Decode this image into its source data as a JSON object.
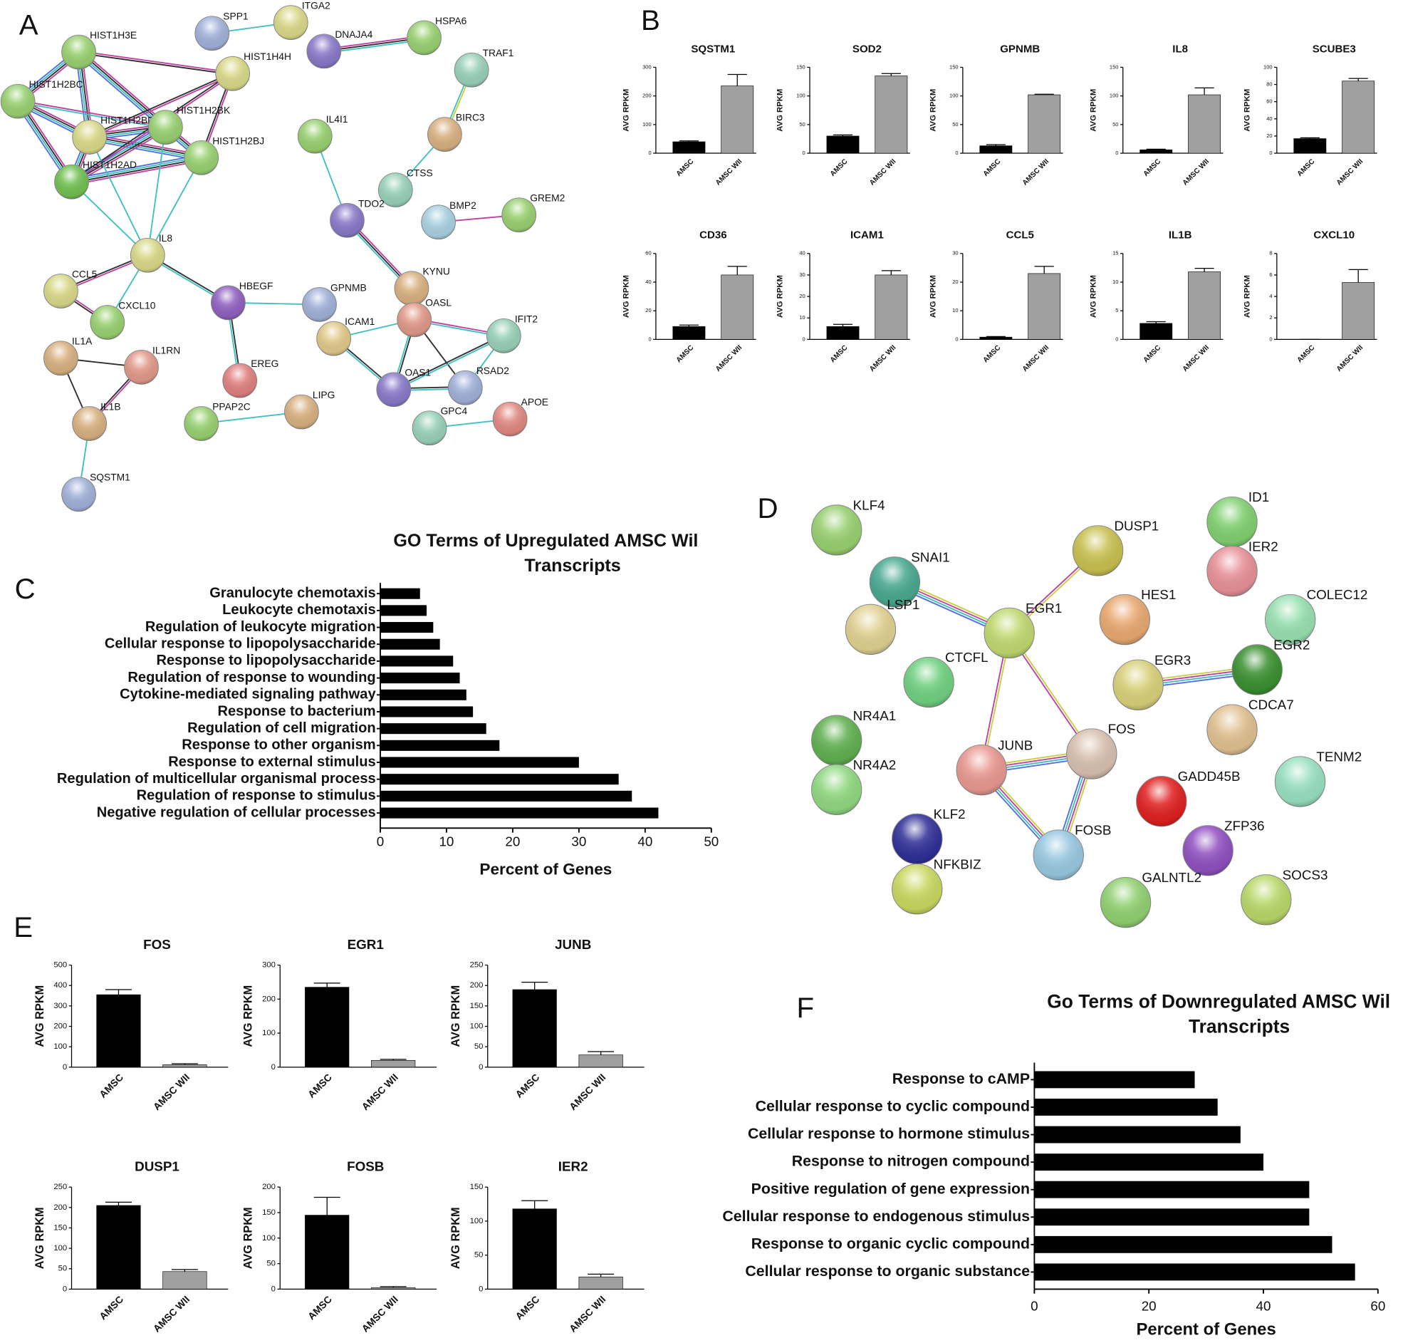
{
  "panel_labels": [
    "A",
    "B",
    "C",
    "D",
    "E",
    "F"
  ],
  "network_a": {
    "nodes": [
      "SPP1",
      "ITGA2",
      "DNAJA4",
      "HSPA6",
      "HIST1H3E",
      "HIST1H4H",
      "TRAF1",
      "HIST1H2BC",
      "HIST1H2BD",
      "HIST1H2BK",
      "HIST1H2BJ",
      "HIST1H2AD",
      "BIRC3",
      "IL4I1",
      "CTSS",
      "TDO2",
      "BMP2",
      "GREM2",
      "IL8",
      "CCL5",
      "HBEGF",
      "GPNMB",
      "KYNU",
      "OASL",
      "CXCL10",
      "ICAM1",
      "IFIT2",
      "IL1A",
      "IL1RN",
      "EREG",
      "OAS1",
      "RSAD2",
      "IL1B",
      "PPAP2C",
      "LIPG",
      "GPC4",
      "APOE",
      "SQSTM1"
    ]
  },
  "network_d": {
    "nodes": [
      "KLF4",
      "ID1",
      "DUSP1",
      "SNAI1",
      "IER2",
      "LSP1",
      "HES1",
      "COLEC12",
      "EGR1",
      "EGR2",
      "CTCFL",
      "EGR3",
      "CDCA7",
      "NR4A1",
      "FOS",
      "JUNB",
      "TENM2",
      "NR4A2",
      "GADD45B",
      "KLF2",
      "FOSB",
      "ZFP36",
      "NFKBIZ",
      "GALNTL2",
      "SOCS3"
    ]
  },
  "chart_data": [
    {
      "type": "bar",
      "title": "SQSTM1",
      "ylabel": "AVG RPKM",
      "categories": [
        "AMSC",
        "AMSC WII"
      ],
      "values": [
        40,
        235
      ],
      "errors": [
        3,
        40
      ],
      "colors": [
        "#000000",
        "#a0a0a0"
      ],
      "ylim": [
        0,
        300
      ],
      "yticks": [
        0,
        100,
        200,
        300
      ]
    },
    {
      "type": "bar",
      "title": "SOD2",
      "ylabel": "AVG RPKM",
      "categories": [
        "AMSC",
        "AMSC WII"
      ],
      "values": [
        30,
        135
      ],
      "errors": [
        2,
        4
      ],
      "colors": [
        "#000000",
        "#a0a0a0"
      ],
      "ylim": [
        0,
        150
      ],
      "yticks": [
        0,
        50,
        100,
        150
      ]
    },
    {
      "type": "bar",
      "title": "GPNMB",
      "ylabel": "AVG RPKM",
      "categories": [
        "AMSC",
        "AMSC WII"
      ],
      "values": [
        13,
        102
      ],
      "errors": [
        2,
        1
      ],
      "colors": [
        "#000000",
        "#a0a0a0"
      ],
      "ylim": [
        0,
        150
      ],
      "yticks": [
        0,
        50,
        100,
        150
      ]
    },
    {
      "type": "bar",
      "title": "IL8",
      "ylabel": "AVG RPKM",
      "categories": [
        "AMSC",
        "AMSC WII"
      ],
      "values": [
        6,
        102
      ],
      "errors": [
        1,
        12
      ],
      "colors": [
        "#000000",
        "#a0a0a0"
      ],
      "ylim": [
        0,
        150
      ],
      "yticks": [
        0,
        50,
        100,
        150
      ]
    },
    {
      "type": "bar",
      "title": "SCUBE3",
      "ylabel": "AVG RPKM",
      "categories": [
        "AMSC",
        "AMSC WII"
      ],
      "values": [
        17,
        84
      ],
      "errors": [
        1,
        3
      ],
      "colors": [
        "#000000",
        "#a0a0a0"
      ],
      "ylim": [
        0,
        100
      ],
      "yticks": [
        0,
        20,
        40,
        60,
        80,
        100
      ]
    },
    {
      "type": "bar",
      "title": "CD36",
      "ylabel": "AVG RPKM",
      "categories": [
        "AMSC",
        "AMSC WII"
      ],
      "values": [
        9,
        45
      ],
      "errors": [
        1,
        6
      ],
      "colors": [
        "#000000",
        "#a0a0a0"
      ],
      "ylim": [
        0,
        60
      ],
      "yticks": [
        0,
        20,
        40,
        60
      ]
    },
    {
      "type": "bar",
      "title": "ICAM1",
      "ylabel": "AVG RPKM",
      "categories": [
        "AMSC",
        "AMSC WII"
      ],
      "values": [
        6,
        30
      ],
      "errors": [
        1,
        2
      ],
      "colors": [
        "#000000",
        "#a0a0a0"
      ],
      "ylim": [
        0,
        40
      ],
      "yticks": [
        0,
        10,
        20,
        30,
        40
      ]
    },
    {
      "type": "bar",
      "title": "CCL5",
      "ylabel": "AVG RPKM",
      "categories": [
        "AMSC",
        "AMSC WII"
      ],
      "values": [
        0.8,
        23
      ],
      "errors": [
        0.2,
        2.5
      ],
      "colors": [
        "#000000",
        "#a0a0a0"
      ],
      "ylim": [
        0,
        30
      ],
      "yticks": [
        0,
        10,
        20,
        30
      ]
    },
    {
      "type": "bar",
      "title": "IL1B",
      "ylabel": "AVG RPKM",
      "categories": [
        "AMSC",
        "AMSC WII"
      ],
      "values": [
        2.8,
        11.8
      ],
      "errors": [
        0.3,
        0.6
      ],
      "colors": [
        "#000000",
        "#a0a0a0"
      ],
      "ylim": [
        0,
        15
      ],
      "yticks": [
        0,
        5,
        10,
        15
      ]
    },
    {
      "type": "bar",
      "title": "CXCL10",
      "ylabel": "AVG RPKM",
      "categories": [
        "AMSC",
        "AMSC WII"
      ],
      "values": [
        0,
        5.3
      ],
      "errors": [
        0,
        1.2
      ],
      "colors": [
        "#000000",
        "#a0a0a0"
      ],
      "ylim": [
        0,
        8
      ],
      "yticks": [
        0,
        2,
        4,
        6,
        8
      ]
    },
    {
      "type": "barh",
      "title": [
        "GO Terms of Upregulated AMSC Wil",
        "Transcripts"
      ],
      "xlabel": "Percent of  Genes",
      "categories": [
        "Granulocyte chemotaxis",
        "Leukocyte chemotaxis",
        "Regulation of leukocyte migration",
        "Cellular response to lipopolysaccharide",
        "Response to lipopolysaccharide",
        "Regulation of response to wounding",
        "Cytokine-mediated signaling pathway",
        "Response to bacterium",
        "Regulation of cell migration",
        "Response to other organism",
        "Response to external stimulus",
        "Regulation of multicellular organismal process",
        "Regulation of response to stimulus",
        "Negative regulation of cellular processes"
      ],
      "values": [
        6,
        7,
        8,
        9,
        11,
        12,
        13,
        14,
        16,
        18,
        30,
        36,
        38,
        42
      ],
      "color": "#000000",
      "xlim": [
        0,
        50
      ],
      "xticks": [
        0,
        10,
        20,
        30,
        40,
        50
      ]
    },
    {
      "type": "bar",
      "title": "FOS",
      "ylabel": "AVG RPKM",
      "categories": [
        "AMSC",
        "AMSC WII"
      ],
      "values": [
        355,
        12
      ],
      "errors": [
        25,
        5
      ],
      "colors": [
        "#000000",
        "#a0a0a0"
      ],
      "ylim": [
        0,
        500
      ],
      "yticks": [
        0,
        100,
        200,
        300,
        400,
        500
      ]
    },
    {
      "type": "bar",
      "title": "EGR1",
      "ylabel": "AVG RPKM",
      "categories": [
        "AMSC",
        "AMSC WII"
      ],
      "values": [
        235,
        20
      ],
      "errors": [
        12,
        3
      ],
      "colors": [
        "#000000",
        "#a0a0a0"
      ],
      "ylim": [
        0,
        300
      ],
      "yticks": [
        0,
        100,
        200,
        300
      ]
    },
    {
      "type": "bar",
      "title": "JUNB",
      "ylabel": "AVG RPKM",
      "categories": [
        "AMSC",
        "AMSC WII"
      ],
      "values": [
        190,
        30
      ],
      "errors": [
        18,
        8
      ],
      "colors": [
        "#000000",
        "#a0a0a0"
      ],
      "ylim": [
        0,
        250
      ],
      "yticks": [
        0,
        50,
        100,
        150,
        200,
        250
      ]
    },
    {
      "type": "bar",
      "title": "DUSP1",
      "ylabel": "AVG RPKM",
      "categories": [
        "AMSC",
        "AMSC WII"
      ],
      "values": [
        205,
        43
      ],
      "errors": [
        8,
        5
      ],
      "colors": [
        "#000000",
        "#a0a0a0"
      ],
      "ylim": [
        0,
        250
      ],
      "yticks": [
        0,
        50,
        100,
        150,
        200,
        250
      ]
    },
    {
      "type": "bar",
      "title": "FOSB",
      "ylabel": "AVG RPKM",
      "categories": [
        "AMSC",
        "AMSC WII"
      ],
      "values": [
        145,
        3
      ],
      "errors": [
        35,
        2
      ],
      "colors": [
        "#000000",
        "#a0a0a0"
      ],
      "ylim": [
        0,
        200
      ],
      "yticks": [
        0,
        50,
        100,
        150,
        200
      ]
    },
    {
      "type": "bar",
      "title": "IER2",
      "ylabel": "AVG RPKM",
      "categories": [
        "AMSC",
        "AMSC WII"
      ],
      "values": [
        118,
        18
      ],
      "errors": [
        12,
        4
      ],
      "colors": [
        "#000000",
        "#a0a0a0"
      ],
      "ylim": [
        0,
        150
      ],
      "yticks": [
        0,
        50,
        100,
        150
      ]
    },
    {
      "type": "barh",
      "title": [
        "Go Terms of Downregulated AMSC Wil",
        "Transcripts"
      ],
      "xlabel": "Percent of  Genes",
      "categories": [
        "Response to cAMP",
        "Cellular response to cyclic compound",
        "Cellular response to hormone stimulus",
        "Response to nitrogen compound",
        "Positive regulation of gene expression",
        "Cellular response to endogenous stimulus",
        "Response to organic cyclic compound",
        "Cellular response to organic substance"
      ],
      "values": [
        28,
        32,
        36,
        40,
        48,
        48,
        52,
        56
      ],
      "color": "#000000",
      "xlim": [
        0,
        60
      ],
      "xticks": [
        0,
        20,
        40,
        60
      ]
    }
  ]
}
